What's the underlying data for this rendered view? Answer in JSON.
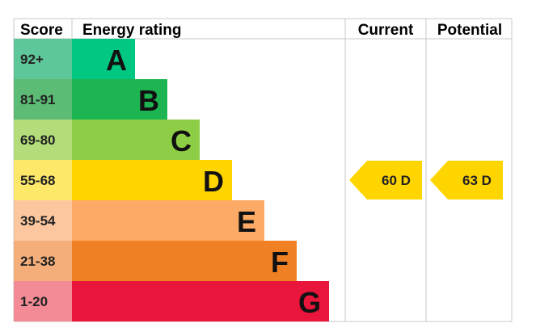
{
  "chart_data": {
    "type": "bar",
    "headers": {
      "score": "Score",
      "rating": "Energy rating",
      "current": "Current",
      "potential": "Potential"
    },
    "bands": [
      {
        "score": "92+",
        "letter": "A",
        "score_color": "#5ec79a",
        "bar_color": "#00c781"
      },
      {
        "score": "81-91",
        "letter": "B",
        "score_color": "#5cbb74",
        "bar_color": "#1db452"
      },
      {
        "score": "69-80",
        "letter": "C",
        "score_color": "#b3dd7a",
        "bar_color": "#8dce46"
      },
      {
        "score": "55-68",
        "letter": "D",
        "score_color": "#fde86a",
        "bar_color": "#ffd500"
      },
      {
        "score": "39-54",
        "letter": "E",
        "score_color": "#fcc79e",
        "bar_color": "#fcaa65"
      },
      {
        "score": "21-38",
        "letter": "F",
        "score_color": "#f4ae7a",
        "bar_color": "#ef8023"
      },
      {
        "score": "1-20",
        "letter": "G",
        "score_color": "#f28b95",
        "bar_color": "#e9153b"
      }
    ],
    "current": {
      "value": 60,
      "band": "D",
      "label": "60  D",
      "color": "#ffd500"
    },
    "potential": {
      "value": 63,
      "band": "D",
      "label": "63  D",
      "color": "#ffd500"
    }
  }
}
